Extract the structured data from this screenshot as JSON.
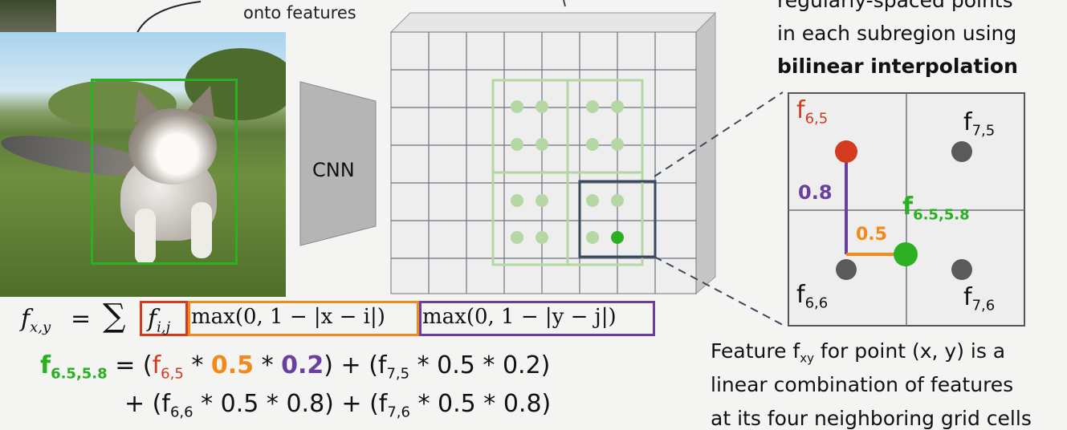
{
  "header": {
    "onto_text": "onto features",
    "right_line1": "regularly-spaced points",
    "right_line2": "in each subregion using",
    "right_line3": "bilinear interpolation"
  },
  "cnn_label": "CNN",
  "zoom": {
    "f65": "f",
    "f65_sub": "6,5",
    "f75": "f",
    "f75_sub": "7,5",
    "f66": "f",
    "f66_sub": "6,6",
    "f76": "f",
    "f76_sub": "7,6",
    "point": "f",
    "point_sub": "6.5,5.8",
    "vert_dist": "0.8",
    "horiz_dist": "0.5"
  },
  "formula": {
    "lhs": "f",
    "lhs_sub": "x,y",
    "equals": "=",
    "sum": "∑",
    "term1": "f",
    "term1_sub": "i,j",
    "term2": "max(0, 1 − |x − i|)",
    "term3": "max(0, 1 − |y − j|)"
  },
  "equation": {
    "lhs": "f",
    "lhs_sub": "6.5,5.8",
    "line1_a": " = (",
    "line1_f": "f",
    "line1_f_sub": "6,5",
    "line1_b": " * ",
    "line1_c": "0.5",
    "line1_d": " * ",
    "line1_e": "0.2",
    "line1_g": ") + (f",
    "line1_g_sub": "7,5",
    "line1_h": " * 0.5 * 0.2)",
    "line2_a": "+ (f",
    "line2_a_sub": "6,6",
    "line2_b": " * 0.5 * 0.8) + (f",
    "line2_b_sub": "7,6",
    "line2_c": " * 0.5 * 0.8)"
  },
  "description": {
    "line1_a": "Feature f",
    "line1_sub": "xy",
    "line1_b": " for point (x, y) is a",
    "line2": "linear combination of features",
    "line3": "at its four neighboring grid cells"
  },
  "colors": {
    "green": "#2bb024",
    "red": "#d33a1e",
    "orange": "#f28a1a",
    "purple": "#6b3fa0",
    "roi_green": "#b5d7a3",
    "dark_box": "#3a4a5a"
  }
}
